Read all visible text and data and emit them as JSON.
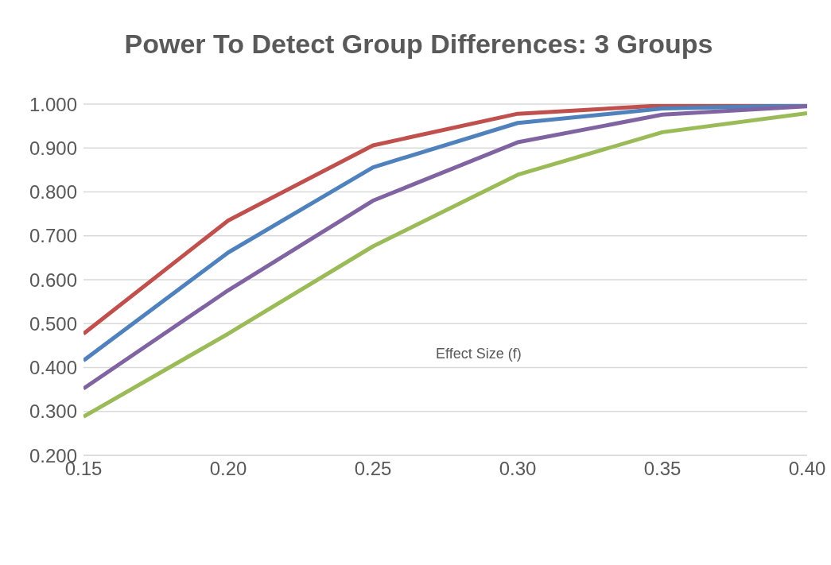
{
  "chart_data": {
    "type": "line",
    "title": "Power To Detect Group Differences: 3 Groups",
    "xlabel": "Effect Size (f)",
    "x": [
      0.15,
      0.2,
      0.25,
      0.3,
      0.35,
      0.4
    ],
    "series": [
      {
        "color": "#c0504d",
        "values": [
          0.477,
          0.735,
          0.906,
          0.978,
          0.997,
          1.0
        ]
      },
      {
        "color": "#4f81bd",
        "values": [
          0.416,
          0.662,
          0.856,
          0.957,
          0.99,
          0.997
        ]
      },
      {
        "color": "#8064a2",
        "values": [
          0.352,
          0.576,
          0.78,
          0.913,
          0.976,
          0.995
        ]
      },
      {
        "color": "#9bbb59",
        "values": [
          0.288,
          0.477,
          0.676,
          0.839,
          0.936,
          0.979
        ]
      }
    ],
    "xlim": [
      0.15,
      0.4
    ],
    "xticks": [
      0.15,
      {
        "value": 0.2,
        "label": "0.20"
      },
      0.25,
      {
        "value": 0.3,
        "label": "0.30"
      },
      0.35,
      {
        "value": 0.4,
        "label": "0.40"
      }
    ],
    "ylim": [
      0.2,
      1.0
    ],
    "yticks": [
      {
        "value": 0.2,
        "label": "0.200"
      },
      {
        "value": 0.3,
        "label": "0.300"
      },
      {
        "value": 0.4,
        "label": "0.400"
      },
      {
        "value": 0.5,
        "label": "0.500"
      },
      {
        "value": 0.6,
        "label": "0.600"
      },
      {
        "value": 0.7,
        "label": "0.700"
      },
      {
        "value": 0.8,
        "label": "0.800"
      },
      {
        "value": 0.9,
        "label": "0.900"
      },
      {
        "value": 1.0,
        "label": "1.000"
      }
    ],
    "grid": "y",
    "legend": false,
    "marker": "none",
    "line_style": "solid"
  }
}
